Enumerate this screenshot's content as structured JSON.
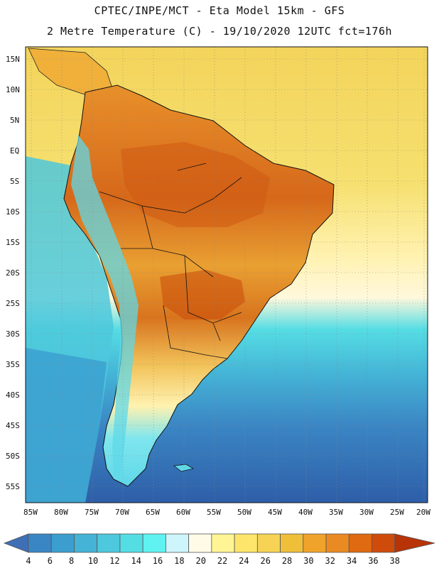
{
  "title_line1": "CPTEC/INPE/MCT -  Eta Model 15km - GFS",
  "title_line2": "2 Metre Temperature (C) - 19/10/2020 12UTC fct=176h",
  "lat_labels": [
    "15N",
    "10N",
    "5N",
    "EQ",
    "5S",
    "10S",
    "15S",
    "20S",
    "25S",
    "30S",
    "35S",
    "40S",
    "45S",
    "50S",
    "55S"
  ],
  "lon_labels": [
    "85W",
    "80W",
    "75W",
    "70W",
    "65W",
    "60W",
    "55W",
    "50W",
    "45W",
    "40W",
    "35W",
    "30W",
    "25W",
    "20W"
  ],
  "colorbar": {
    "labels": [
      "4",
      "6",
      "8",
      "10",
      "12",
      "14",
      "16",
      "18",
      "20",
      "22",
      "24",
      "26",
      "28",
      "30",
      "32",
      "34",
      "36",
      "38"
    ],
    "colors": [
      "#3f6fb6",
      "#3a86c4",
      "#3b9ecf",
      "#44b3d6",
      "#4ec8dc",
      "#55dde4",
      "#5ff2f0",
      "#cdf5fb",
      "#fffbe6",
      "#fff594",
      "#fce56a",
      "#f6d354",
      "#efbf3a",
      "#f0a32a",
      "#ea8a22",
      "#df6a12",
      "#cf4b0b",
      "#b83308"
    ]
  },
  "map_colors": {
    "frame": "#111111",
    "ocean_north": "#f3d45b",
    "ocean_south": "#2e5ea8",
    "land_hot": "#d96a1a",
    "land_warm": "#f0b03a",
    "andes": "#5fd8e8"
  }
}
